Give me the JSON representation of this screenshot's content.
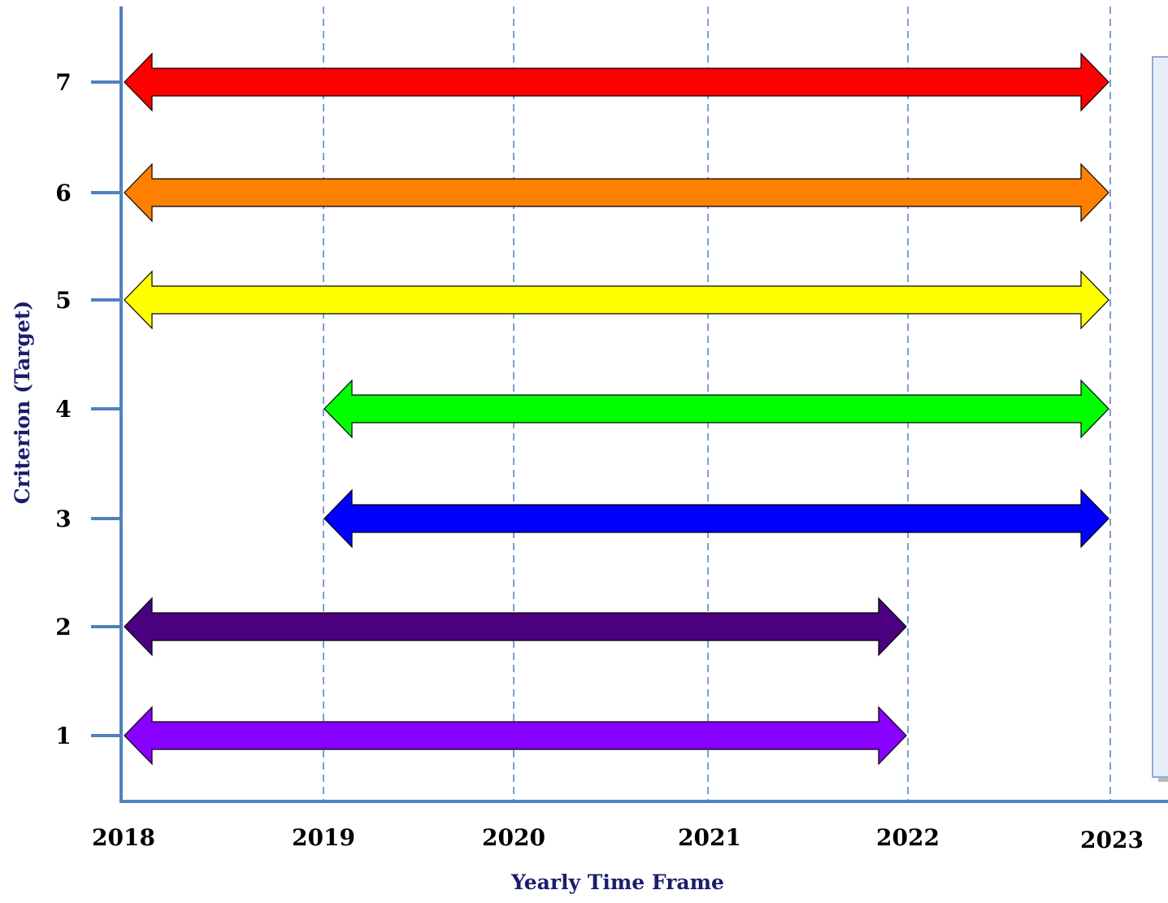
{
  "chart_data": {
    "type": "timeline-range",
    "xlabel": "Yearly Time Frame",
    "ylabel": "Criterion (Target)",
    "x_ticks": [
      "2018",
      "2019",
      "2020",
      "2021",
      "2022",
      "2023"
    ],
    "y_ticks": [
      "1",
      "2",
      "3",
      "4",
      "5",
      "6",
      "7"
    ],
    "xlim": [
      2018,
      2023
    ],
    "grid": "vertical dashed lines at 2019-2023",
    "legend": "empty panel on right",
    "ranges": [
      {
        "criterion": "1",
        "start": 2018,
        "end": 2022,
        "color": "#8800ff"
      },
      {
        "criterion": "2",
        "start": 2018,
        "end": 2022,
        "color": "#4b0080"
      },
      {
        "criterion": "3",
        "start": 2019,
        "end": 2023,
        "color": "#0000ff"
      },
      {
        "criterion": "4",
        "start": 2019,
        "end": 2023,
        "color": "#00ff00"
      },
      {
        "criterion": "5",
        "start": 2018,
        "end": 2023,
        "color": "#ffff00"
      },
      {
        "criterion": "6",
        "start": 2018,
        "end": 2023,
        "color": "#ff8000"
      },
      {
        "criterion": "7",
        "start": 2018,
        "end": 2023,
        "color": "#ff0000"
      }
    ]
  },
  "colors": {
    "axis": "#4f81bd",
    "grid": "#4f81bd",
    "legend_fill": "#e8eef8",
    "legend_border": "#8eaadb"
  }
}
